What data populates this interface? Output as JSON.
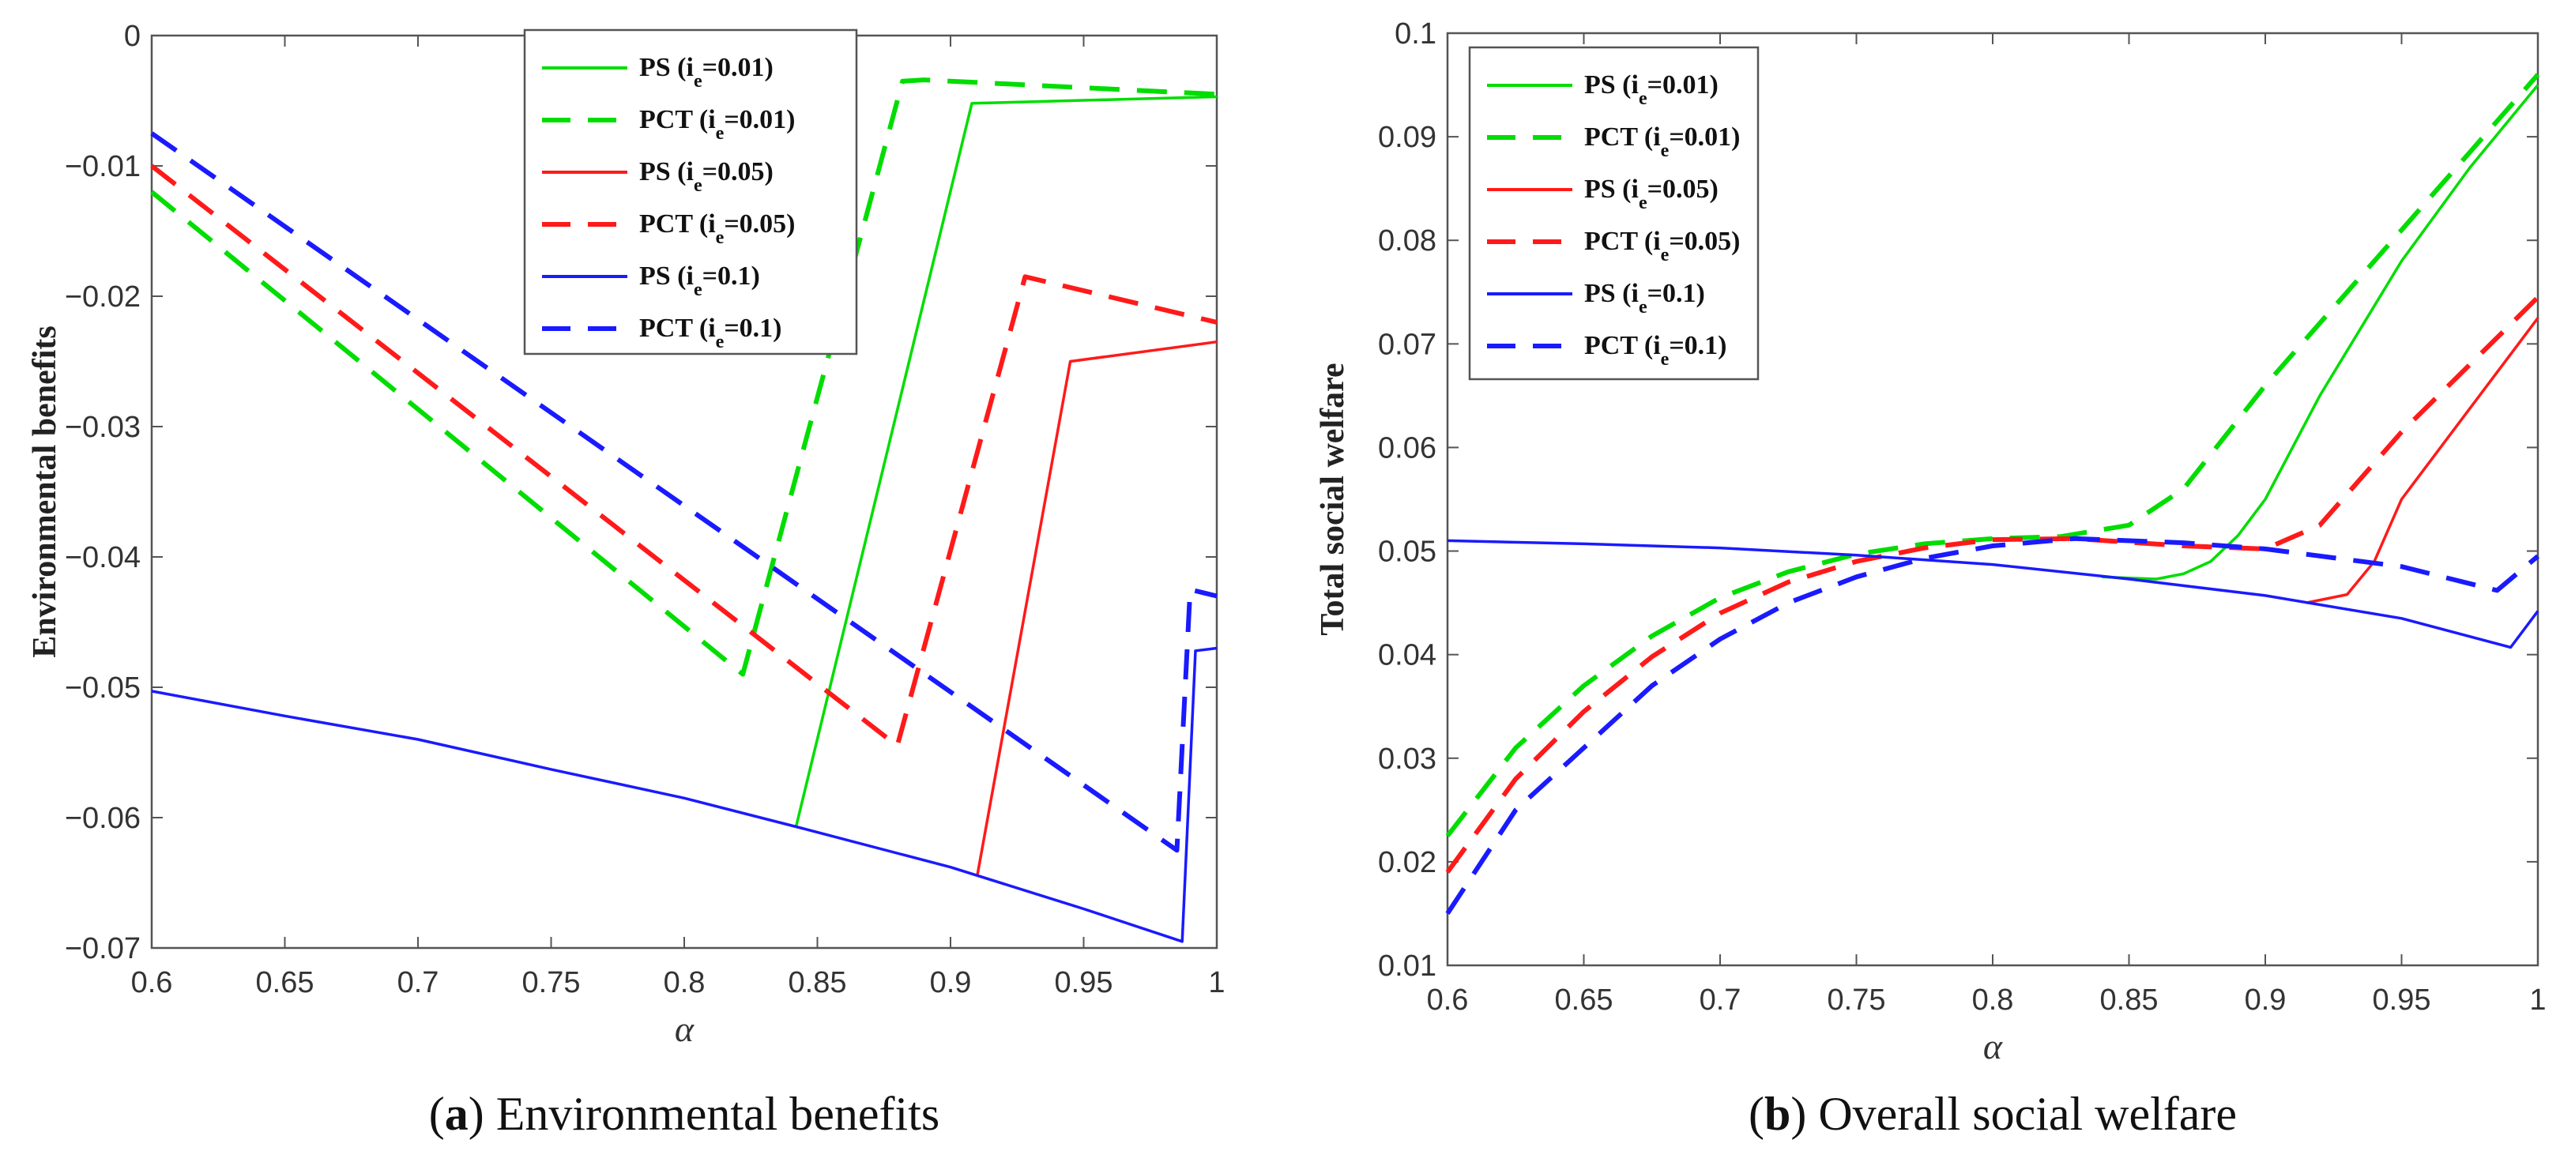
{
  "colors": {
    "green": "#00dd00",
    "red": "#ff1a1a",
    "blue": "#1a1aff",
    "axis": "#555555"
  },
  "legend": [
    {
      "prefix": "PS (i",
      "sub": "e",
      "suffix": "=0.01)",
      "color": "#00dd00",
      "dashed": false
    },
    {
      "prefix": "PCT (i",
      "sub": "e",
      "suffix": "=0.01)",
      "color": "#00dd00",
      "dashed": true
    },
    {
      "prefix": "PS (i",
      "sub": "e",
      "suffix": "=0.05)",
      "color": "#ff1a1a",
      "dashed": false
    },
    {
      "prefix": "PCT (i",
      "sub": "e",
      "suffix": "=0.05)",
      "color": "#ff1a1a",
      "dashed": true
    },
    {
      "prefix": "PS (i",
      "sub": "e",
      "suffix": "=0.1)",
      "color": "#1a1aff",
      "dashed": false
    },
    {
      "prefix": "PCT (i",
      "sub": "e",
      "suffix": "=0.1)",
      "color": "#1a1aff",
      "dashed": true
    }
  ],
  "chart_data": [
    {
      "type": "line",
      "caption_label": "a",
      "caption_text": " Environmental benefits",
      "xlabel": "α",
      "ylabel": "Environmental benefits",
      "xlim": [
        0.6,
        1.0
      ],
      "ylim": [
        -0.07,
        0
      ],
      "xticks": [
        "0.6",
        "0.65",
        "0.7",
        "0.75",
        "0.8",
        "0.85",
        "0.9",
        "0.95",
        "1"
      ],
      "yticks": [
        "0",
        "-0.01",
        "-0.02",
        "-0.03",
        "-0.04",
        "-0.05",
        "-0.06",
        "-0.07"
      ],
      "legend_position": "top-center",
      "series": [
        {
          "name": "PS (ie=0.01)",
          "x": [
            0.842,
            0.908,
            1.0
          ],
          "y": [
            -0.0607,
            -0.0052,
            -0.0047
          ]
        },
        {
          "name": "PCT (ie=0.01)",
          "x": [
            0.6,
            0.822,
            0.882,
            0.89,
            1.0
          ],
          "y": [
            -0.012,
            -0.049,
            -0.0035,
            -0.0034,
            -0.0045
          ]
        },
        {
          "name": "PS (ie=0.05)",
          "x": [
            0.91,
            0.945,
            1.0
          ],
          "y": [
            -0.0645,
            -0.025,
            -0.0235
          ]
        },
        {
          "name": "PCT (ie=0.05)",
          "x": [
            0.6,
            0.88,
            0.928,
            1.0
          ],
          "y": [
            -0.01,
            -0.0545,
            -0.0185,
            -0.022
          ]
        },
        {
          "name": "PS (ie=0.1)",
          "x": [
            0.6,
            0.65,
            0.7,
            0.75,
            0.8,
            0.842,
            0.9,
            0.95,
            0.987,
            0.992,
            1.0
          ],
          "y": [
            -0.0503,
            -0.0522,
            -0.054,
            -0.0563,
            -0.0585,
            -0.0607,
            -0.0638,
            -0.067,
            -0.0695,
            -0.0472,
            -0.047
          ]
        },
        {
          "name": "PCT (ie=0.1)",
          "x": [
            0.6,
            0.985,
            0.99,
            1.0
          ],
          "y": [
            -0.0075,
            -0.0625,
            -0.0425,
            -0.043
          ]
        }
      ]
    },
    {
      "type": "line",
      "caption_label": "b",
      "caption_text": " Overall social welfare",
      "xlabel": "α",
      "ylabel": "Total social welfare",
      "xlim": [
        0.6,
        1.0
      ],
      "ylim": [
        0.01,
        0.1
      ],
      "xticks": [
        "0.6",
        "0.65",
        "0.7",
        "0.75",
        "0.8",
        "0.85",
        "0.9",
        "0.95",
        "1"
      ],
      "yticks": [
        "0.1",
        "0.09",
        "0.08",
        "0.07",
        "0.06",
        "0.05",
        "0.04",
        "0.03",
        "0.02",
        "0.01"
      ],
      "legend_position": "top-left",
      "series": [
        {
          "name": "PS (ie=0.01)",
          "x": [
            0.84,
            0.86,
            0.87,
            0.88,
            0.89,
            0.9,
            0.92,
            0.95,
            0.975,
            1.0
          ],
          "y": [
            0.0475,
            0.0473,
            0.0478,
            0.049,
            0.0515,
            0.055,
            0.065,
            0.078,
            0.087,
            0.095
          ]
        },
        {
          "name": "PCT (ie=0.01)",
          "x": [
            0.6,
            0.625,
            0.65,
            0.675,
            0.7,
            0.725,
            0.75,
            0.775,
            0.8,
            0.825,
            0.85,
            0.87,
            0.9,
            0.925,
            0.95,
            0.975,
            1.0
          ],
          "y": [
            0.0225,
            0.031,
            0.037,
            0.0418,
            0.0455,
            0.048,
            0.0497,
            0.0507,
            0.0512,
            0.0514,
            0.0525,
            0.056,
            0.066,
            0.0735,
            0.081,
            0.0885,
            0.096
          ]
        },
        {
          "name": "PS (ie=0.05)",
          "x": [
            0.915,
            0.93,
            0.94,
            0.95,
            0.97,
            1.0
          ],
          "y": [
            0.045,
            0.0458,
            0.049,
            0.055,
            0.062,
            0.0725
          ]
        },
        {
          "name": "PCT (ie=0.05)",
          "x": [
            0.6,
            0.625,
            0.65,
            0.675,
            0.7,
            0.725,
            0.75,
            0.775,
            0.8,
            0.83,
            0.87,
            0.9,
            0.92,
            0.95,
            0.975,
            1.0
          ],
          "y": [
            0.019,
            0.028,
            0.0345,
            0.0398,
            0.044,
            0.047,
            0.049,
            0.0503,
            0.0511,
            0.0512,
            0.0505,
            0.0502,
            0.0525,
            0.0615,
            0.068,
            0.0745
          ]
        },
        {
          "name": "PS (ie=0.1)",
          "x": [
            0.6,
            0.65,
            0.7,
            0.75,
            0.8,
            0.85,
            0.9,
            0.95,
            0.99,
            1.0
          ],
          "y": [
            0.051,
            0.0507,
            0.0503,
            0.0496,
            0.0487,
            0.0473,
            0.0457,
            0.0435,
            0.0407,
            0.0442
          ]
        },
        {
          "name": "PCT (ie=0.1)",
          "x": [
            0.6,
            0.625,
            0.65,
            0.675,
            0.7,
            0.725,
            0.75,
            0.775,
            0.8,
            0.83,
            0.87,
            0.9,
            0.95,
            0.985,
            1.0
          ],
          "y": [
            0.015,
            0.025,
            0.031,
            0.037,
            0.0415,
            0.045,
            0.0475,
            0.0493,
            0.0505,
            0.0512,
            0.0508,
            0.0502,
            0.0485,
            0.0462,
            0.0495
          ]
        }
      ]
    }
  ]
}
